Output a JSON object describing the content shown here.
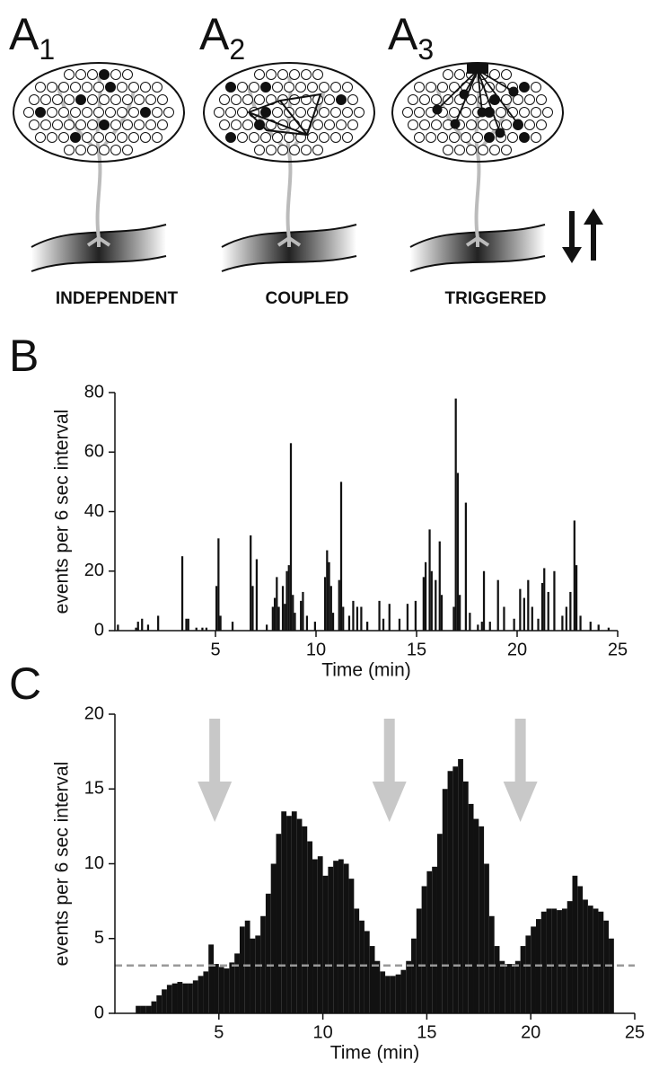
{
  "panel_a": {
    "diagrams": [
      {
        "label": "A",
        "subscript": "1",
        "caption": "INDEPENDENT"
      },
      {
        "label": "A",
        "subscript": "2",
        "caption": "COUPLED"
      },
      {
        "label": "A",
        "subscript": "3",
        "caption": "TRIGGERED"
      }
    ]
  },
  "chart_data": [
    {
      "type": "bar",
      "panel_label": "B",
      "y_label": "events per 6 sec interval",
      "x_label": "Time (min)",
      "color": "#111111",
      "xlim": [
        0,
        25
      ],
      "xticks": [
        5,
        10,
        15,
        20,
        25
      ],
      "ylim": [
        0,
        80
      ],
      "yticks": [
        0,
        20,
        40,
        60,
        80
      ],
      "x": [
        0.1,
        1.0,
        1.1,
        1.3,
        1.6,
        2.1,
        3.3,
        3.5,
        3.6,
        4.0,
        4.3,
        4.5,
        5.0,
        5.1,
        5.2,
        5.8,
        6.7,
        6.8,
        7.0,
        7.5,
        7.8,
        7.9,
        8.0,
        8.1,
        8.3,
        8.4,
        8.5,
        8.6,
        8.7,
        8.8,
        8.9,
        9.2,
        9.3,
        9.5,
        9.9,
        10.4,
        10.5,
        10.6,
        10.7,
        10.8,
        11.1,
        11.2,
        11.3,
        11.6,
        11.8,
        12.0,
        12.2,
        12.5,
        13.1,
        13.3,
        13.6,
        14.1,
        14.5,
        14.9,
        15.3,
        15.4,
        15.6,
        15.7,
        15.9,
        16.1,
        16.2,
        16.8,
        16.9,
        17.0,
        17.1,
        17.4,
        17.6,
        18.0,
        18.2,
        18.3,
        18.6,
        19.0,
        19.3,
        19.8,
        20.1,
        20.3,
        20.5,
        20.7,
        21.0,
        21.2,
        21.3,
        21.5,
        21.8,
        22.2,
        22.4,
        22.6,
        22.8,
        22.9,
        23.1,
        23.6,
        24.0,
        24.5
      ],
      "values": [
        2,
        1,
        3,
        4,
        2,
        5,
        25,
        4,
        4,
        1,
        1,
        1,
        15,
        31,
        5,
        3,
        32,
        15,
        24,
        2,
        8,
        11,
        18,
        8,
        15,
        9,
        20,
        22,
        63,
        12,
        6,
        10,
        13,
        5,
        3,
        18,
        27,
        23,
        15,
        6,
        17,
        50,
        8,
        5,
        10,
        8,
        8,
        3,
        10,
        4,
        9,
        4,
        9,
        10,
        18,
        23,
        34,
        20,
        17,
        30,
        12,
        8,
        78,
        53,
        12,
        43,
        6,
        2,
        3,
        20,
        3,
        17,
        8,
        4,
        14,
        11,
        17,
        8,
        4,
        16,
        21,
        13,
        20,
        5,
        8,
        13,
        37,
        22,
        5,
        3,
        2,
        1
      ]
    },
    {
      "type": "bar",
      "panel_label": "C",
      "y_label": "events per 6 sec interval",
      "x_label": "Time (min)",
      "color": "#111111",
      "xlim": [
        0,
        25
      ],
      "xticks": [
        5,
        10,
        15,
        20,
        25
      ],
      "ylim": [
        0,
        20
      ],
      "yticks": [
        0,
        5,
        10,
        15,
        20
      ],
      "threshold": 3.2,
      "arrows_x": [
        4.8,
        13.2,
        19.5
      ],
      "x": [
        1.0,
        1.25,
        1.5,
        1.75,
        2.0,
        2.25,
        2.5,
        2.75,
        3.0,
        3.25,
        3.5,
        3.75,
        4.0,
        4.25,
        4.5,
        4.75,
        5.0,
        5.25,
        5.5,
        5.75,
        6.0,
        6.25,
        6.5,
        6.75,
        7.0,
        7.25,
        7.5,
        7.75,
        8.0,
        8.25,
        8.5,
        8.75,
        9.0,
        9.25,
        9.5,
        9.75,
        10.0,
        10.25,
        10.5,
        10.75,
        11.0,
        11.25,
        11.5,
        11.75,
        12.0,
        12.25,
        12.5,
        12.75,
        13.0,
        13.25,
        13.5,
        13.75,
        14.0,
        14.25,
        14.5,
        14.75,
        15.0,
        15.25,
        15.5,
        15.75,
        16.0,
        16.25,
        16.5,
        16.75,
        17.0,
        17.25,
        17.5,
        17.75,
        18.0,
        18.25,
        18.5,
        18.75,
        19.0,
        19.25,
        19.5,
        19.75,
        20.0,
        20.25,
        20.5,
        20.75,
        21.0,
        21.25,
        21.5,
        21.75,
        22.0,
        22.25,
        22.5,
        22.75,
        23.0,
        23.25,
        23.5,
        23.75
      ],
      "values": [
        0.5,
        0.5,
        0.5,
        0.8,
        1.2,
        1.6,
        1.9,
        2.0,
        2.1,
        2.0,
        2.0,
        2.2,
        2.5,
        2.8,
        4.6,
        3.3,
        3.1,
        3.0,
        3.4,
        4.0,
        5.8,
        6.2,
        5.0,
        5.2,
        6.5,
        8.0,
        10.0,
        12.0,
        13.5,
        13.2,
        13.5,
        13.0,
        12.5,
        11.5,
        10.3,
        10.5,
        9.2,
        9.8,
        10.2,
        10.3,
        10.0,
        9.0,
        7.0,
        6.2,
        5.5,
        4.5,
        3.5,
        2.8,
        2.5,
        2.5,
        2.6,
        2.9,
        3.5,
        5.0,
        7.0,
        8.5,
        9.5,
        9.8,
        12.0,
        15.0,
        16.2,
        16.5,
        17.0,
        15.5,
        14.0,
        13.0,
        12.5,
        10.0,
        6.5,
        4.5,
        3.5,
        3.3,
        3.3,
        3.5,
        4.5,
        5.2,
        5.8,
        6.3,
        6.8,
        7.0,
        7.0,
        6.9,
        7.0,
        7.5,
        9.2,
        8.5,
        7.6,
        7.2,
        7.0,
        6.8,
        6.2,
        5.0
      ]
    }
  ]
}
